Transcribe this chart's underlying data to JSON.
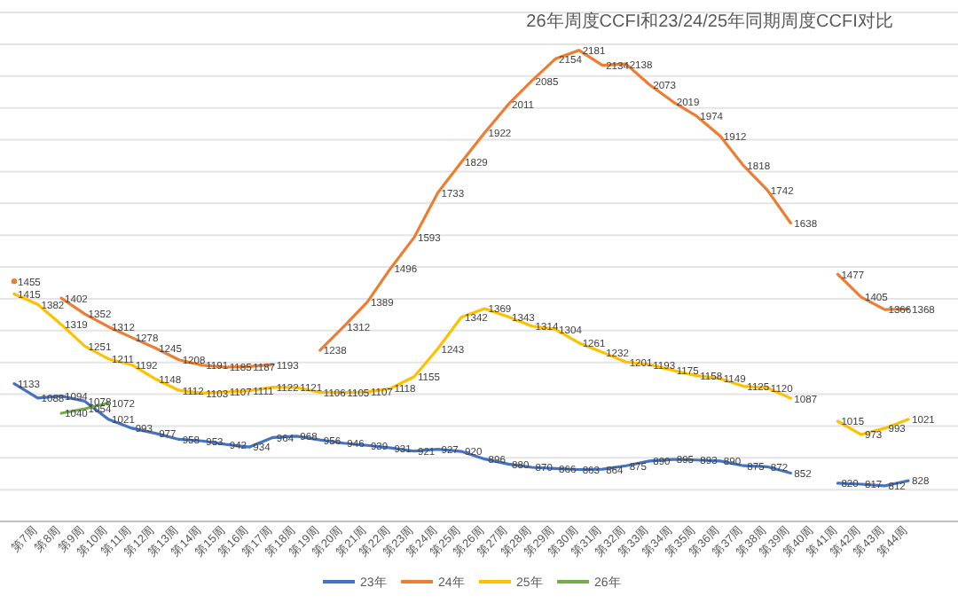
{
  "chart_data": {
    "type": "line",
    "title": "26年周度CCFI和23/24/25年同期周度CCFI对比",
    "categories": [
      null,
      "第7周",
      "第8周",
      "第9周",
      "第10周",
      "第11周",
      "第12周",
      "第13周",
      "第14周",
      "第15周",
      "第16周",
      "第17周",
      "第18周",
      "第19周",
      "第20周",
      "第21周",
      "第22周",
      "第23周",
      "第24周",
      "第25周",
      "第26周",
      "第27周",
      "第28周",
      "第29周",
      "第30周",
      "第31周",
      "第32周",
      "第33周",
      "第34周",
      "第35周",
      "第36周",
      "第37周",
      "第38周",
      "第39周",
      "第40周",
      "第41周",
      "第42周",
      "第43周",
      "第44周"
    ],
    "series": [
      {
        "name": "23年",
        "color": "#4472c4",
        "values": [
          1133,
          1088,
          1094,
          1078,
          1021,
          993,
          977,
          958,
          953,
          942,
          934,
          964,
          968,
          956,
          946,
          939,
          931,
          921,
          927,
          920,
          896,
          880,
          870,
          866,
          863,
          864,
          875,
          890,
          895,
          893,
          890,
          875,
          872,
          852,
          null,
          820,
          817,
          812,
          828
        ]
      },
      {
        "name": "24年",
        "color": "#ed7d31",
        "values": [
          1455,
          null,
          1402,
          1352,
          1312,
          1278,
          1245,
          1208,
          1191,
          1185,
          1187,
          1193,
          null,
          1238,
          1312,
          1389,
          1496,
          1593,
          1733,
          1829,
          1922,
          2011,
          2085,
          2154,
          2181,
          2134,
          2138,
          2073,
          2019,
          1974,
          1912,
          1818,
          1742,
          1638,
          null,
          1477,
          1405,
          1366,
          1368
        ]
      },
      {
        "name": "25年",
        "color": "#ffc000",
        "values": [
          1415,
          1382,
          1319,
          1251,
          1211,
          1192,
          1148,
          1112,
          1103,
          1107,
          1111,
          1122,
          1121,
          1106,
          1105,
          1107,
          1118,
          1155,
          1243,
          1342,
          1369,
          1343,
          1314,
          1304,
          1261,
          1232,
          1201,
          1193,
          1175,
          1158,
          1149,
          1125,
          1120,
          1087,
          null,
          1015,
          973,
          993,
          1021
        ]
      },
      {
        "name": "26年",
        "color": "#70ad47",
        "values": [
          null,
          null,
          1040,
          1054,
          1072,
          null,
          null,
          null,
          null,
          null,
          null,
          null,
          null,
          null,
          null,
          null,
          null,
          null,
          null,
          null,
          null,
          null,
          null,
          null,
          null,
          null,
          null,
          null,
          null,
          null,
          null,
          null,
          null,
          null,
          null,
          null,
          null,
          null,
          null
        ]
      }
    ],
    "ylim": [
      700,
      2300
    ],
    "yticks": [
      {
        "value": 700,
        "label": null
      },
      {
        "value": 800,
        "label": null
      },
      {
        "value": 900,
        "label": null
      },
      {
        "value": 1000,
        "label": null
      },
      {
        "value": 1100,
        "label": null
      },
      {
        "value": 1200,
        "label": null
      },
      {
        "value": 1300,
        "label": null
      },
      {
        "value": 1400,
        "label": null
      },
      {
        "value": 1500,
        "label": null
      },
      {
        "value": 1600,
        "label": null
      },
      {
        "value": 1700,
        "label": null
      },
      {
        "value": 1800,
        "label": null
      },
      {
        "value": 1900,
        "label": null
      },
      {
        "value": 2000,
        "label": null
      },
      {
        "value": 2100,
        "label": null
      },
      {
        "value": 2200,
        "label": null
      },
      {
        "value": 2300,
        "label": null
      }
    ],
    "tick_labels": "x",
    "grid": "y",
    "legend": "bottom",
    "data_labels": true,
    "marker": "none",
    "line_style": "solid"
  }
}
